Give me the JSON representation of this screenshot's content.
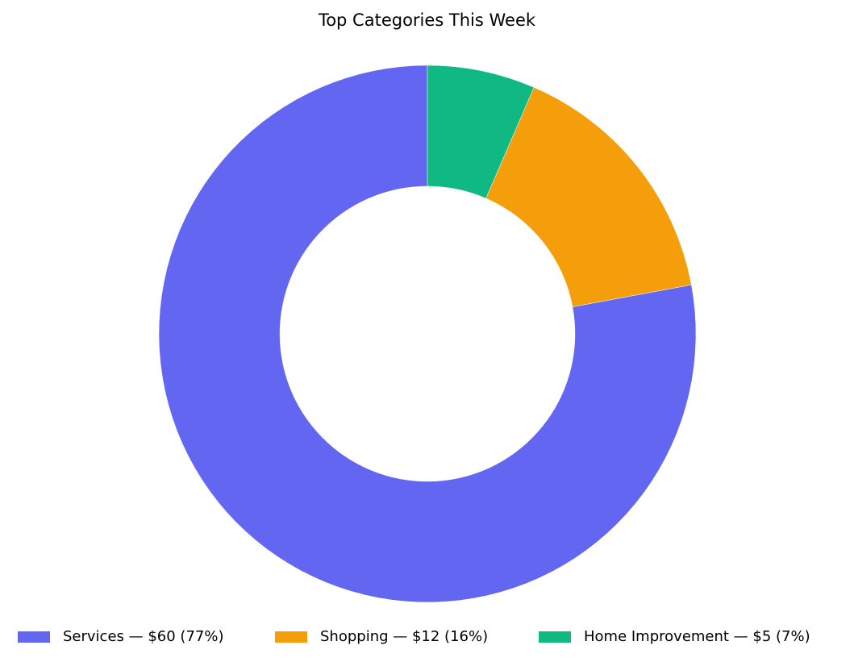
{
  "chart_data": {
    "type": "pie",
    "variant": "donut",
    "title": "Top Categories This Week",
    "categories": [
      "Services",
      "Shopping",
      "Home Improvement"
    ],
    "values": [
      60,
      12,
      5
    ],
    "percent": [
      77,
      16,
      7
    ],
    "colors": [
      "#6366f1",
      "#f59e0b",
      "#10b981"
    ],
    "legend_labels": [
      "Services — $60 (77%)",
      "Shopping — $12 (16%)",
      "Home Improvement — $5 (7%)"
    ],
    "legend_position": "bottom-center",
    "start_angle": "top",
    "direction": "counterclockwise"
  }
}
